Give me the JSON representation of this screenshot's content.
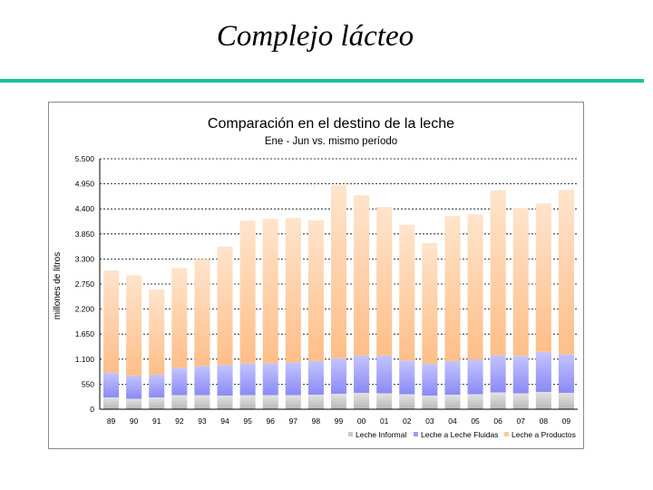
{
  "slide": {
    "title": "Complejo lácteo",
    "rule_color": "#1fbf9a"
  },
  "chart_data": {
    "type": "bar",
    "stacked": true,
    "title": "Comparación en el destino de la leche",
    "subtitle": "Ene - Jun vs. mismo período",
    "xlabel": "",
    "ylabel": "millones de litros",
    "ylim": [
      0,
      5500
    ],
    "yticks": [
      0,
      550,
      1100,
      1650,
      2200,
      2750,
      3300,
      3850,
      4400,
      4950,
      5500
    ],
    "ytick_labels": [
      "0",
      "550",
      "1.100",
      "1.650",
      "2.200",
      "2.750",
      "3.300",
      "3.850",
      "4.400",
      "4.950",
      "5.500"
    ],
    "grid": true,
    "legend_position": "bottom-right",
    "categories": [
      "89",
      "90",
      "91",
      "92",
      "93",
      "94",
      "95",
      "96",
      "97",
      "98",
      "99",
      "00",
      "01",
      "02",
      "03",
      "04",
      "05",
      "06",
      "07",
      "08",
      "09"
    ],
    "series": [
      {
        "name": "Leche Informal",
        "color": "#c8c8c8",
        "values": [
          260,
          230,
          260,
          310,
          310,
          300,
          310,
          310,
          310,
          320,
          340,
          360,
          350,
          330,
          300,
          320,
          330,
          370,
          350,
          380,
          360
        ]
      },
      {
        "name": "Leche a Leche Fluidas",
        "color": "#9999ff",
        "values": [
          540,
          510,
          500,
          600,
          640,
          670,
          700,
          700,
          720,
          740,
          780,
          820,
          830,
          740,
          700,
          740,
          760,
          820,
          820,
          880,
          850
        ]
      },
      {
        "name": "Leche a Productos",
        "color": "#ffc99a",
        "values": [
          2250,
          2200,
          1870,
          2190,
          2350,
          2600,
          3130,
          3170,
          3170,
          3090,
          3800,
          3520,
          3260,
          2980,
          2650,
          3180,
          3190,
          3620,
          3250,
          3260,
          3610
        ]
      }
    ]
  }
}
